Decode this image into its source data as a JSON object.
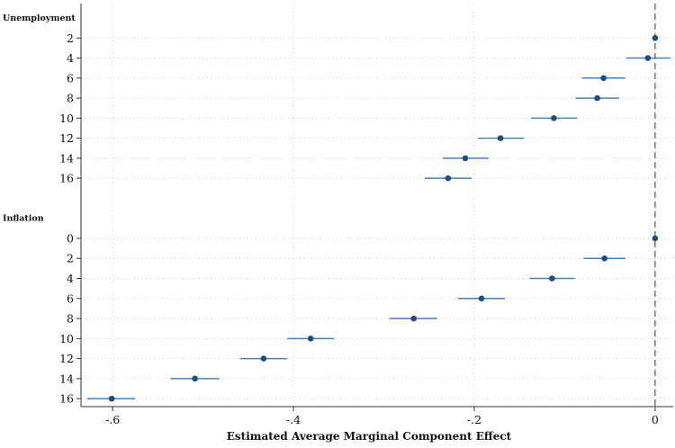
{
  "chart_data": {
    "type": "scatter",
    "subtype": "coefficient-plot-with-confidence-intervals",
    "title": "",
    "xlabel": "Estimated Average Marginal Component Effect",
    "ylabel": "",
    "xlim": [
      -0.635,
      0.02
    ],
    "x_ticks": [
      -0.6,
      -0.4,
      -0.2,
      0
    ],
    "x_tick_labels": [
      "-.6",
      "-.4",
      "-.2",
      "0"
    ],
    "reference_line_x": 0,
    "grid": true,
    "point_color": "#1f4e79",
    "ci_color": "#4a7fb5",
    "groups": [
      {
        "label": "Unemployment",
        "items": [
          {
            "label": "2",
            "estimate": 0.0,
            "ci": [
              0.0,
              0.0
            ]
          },
          {
            "label": "4",
            "estimate": -0.008,
            "ci": [
              -0.032,
              0.017
            ]
          },
          {
            "label": "6",
            "estimate": -0.057,
            "ci": [
              -0.081,
              -0.033
            ]
          },
          {
            "label": "8",
            "estimate": -0.064,
            "ci": [
              -0.088,
              -0.04
            ]
          },
          {
            "label": "10",
            "estimate": -0.112,
            "ci": [
              -0.137,
              -0.086
            ]
          },
          {
            "label": "12",
            "estimate": -0.171,
            "ci": [
              -0.196,
              -0.145
            ]
          },
          {
            "label": "14",
            "estimate": -0.21,
            "ci": [
              -0.235,
              -0.184
            ]
          },
          {
            "label": "16",
            "estimate": -0.229,
            "ci": [
              -0.255,
              -0.203
            ]
          }
        ]
      },
      {
        "label": "Inflation",
        "items": [
          {
            "label": "0",
            "estimate": 0.0,
            "ci": [
              0.0,
              0.0
            ]
          },
          {
            "label": "2",
            "estimate": -0.056,
            "ci": [
              -0.079,
              -0.033
            ]
          },
          {
            "label": "4",
            "estimate": -0.114,
            "ci": [
              -0.139,
              -0.089
            ]
          },
          {
            "label": "6",
            "estimate": -0.192,
            "ci": [
              -0.218,
              -0.166
            ]
          },
          {
            "label": "8",
            "estimate": -0.267,
            "ci": [
              -0.294,
              -0.241
            ]
          },
          {
            "label": "10",
            "estimate": -0.381,
            "ci": [
              -0.407,
              -0.355
            ]
          },
          {
            "label": "12",
            "estimate": -0.433,
            "ci": [
              -0.459,
              -0.407
            ]
          },
          {
            "label": "14",
            "estimate": -0.509,
            "ci": [
              -0.536,
              -0.482
            ]
          },
          {
            "label": "16",
            "estimate": -0.601,
            "ci": [
              -0.628,
              -0.575
            ]
          }
        ]
      }
    ]
  }
}
